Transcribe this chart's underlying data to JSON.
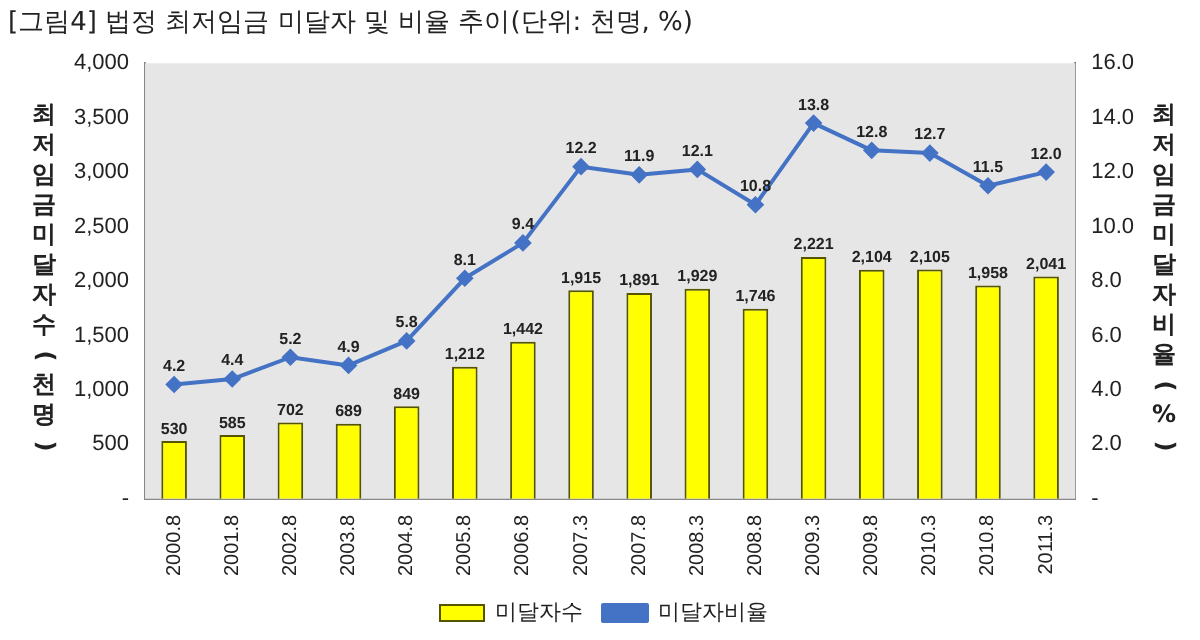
{
  "chart_data": {
    "type": "bar",
    "title": "[그림4] 법정 최저임금 미달자 및 비율 추이(단위: 천명, %)",
    "ylabel": "최저임금미달자수(천명)",
    "y2label": "최저임금미달자비율(%)",
    "categories": [
      "2000.8",
      "2001.8",
      "2002.8",
      "2003.8",
      "2004.8",
      "2005.8",
      "2006.8",
      "2007.3",
      "2007.8",
      "2008.3",
      "2008.8",
      "2009.3",
      "2009.8",
      "2010.3",
      "2010.8",
      "2011.3"
    ],
    "series": [
      {
        "name": "미달자수",
        "color": "#ffff00",
        "values": [
          530,
          585,
          702,
          689,
          849,
          1212,
          1442,
          1915,
          1891,
          1929,
          1746,
          2221,
          2104,
          2105,
          1958,
          2041
        ],
        "value_labels": [
          "530",
          "585",
          "702",
          "689",
          "849",
          "1,212",
          "1,442",
          "1,915",
          "1,891",
          "1,929",
          "1,746",
          "2,221",
          "2,104",
          "2,105",
          "1,958",
          "2,041"
        ]
      },
      {
        "name": "미달자비율",
        "type": "line",
        "axis": "y2",
        "color": "#4472c4",
        "marker": "diamond",
        "values": [
          4.2,
          4.4,
          5.2,
          4.9,
          5.8,
          8.1,
          9.4,
          12.2,
          11.9,
          12.1,
          10.8,
          13.8,
          12.8,
          12.7,
          11.5,
          12.0
        ],
        "value_labels": [
          "4.2",
          "4.4",
          "5.2",
          "4.9",
          "5.8",
          "8.1",
          "9.4",
          "12.2",
          "11.9",
          "12.1",
          "10.8",
          "13.8",
          "12.8",
          "12.7",
          "11.5",
          "12.0"
        ]
      }
    ],
    "ylim": [
      0,
      4000
    ],
    "yticks": [
      {
        "value": 0,
        "label": "-"
      },
      {
        "value": 500,
        "label": "500"
      },
      {
        "value": 1000,
        "label": "1,000"
      },
      {
        "value": 1500,
        "label": "1,500"
      },
      {
        "value": 2000,
        "label": "2,000"
      },
      {
        "value": 2500,
        "label": "2,500"
      },
      {
        "value": 3000,
        "label": "3,000"
      },
      {
        "value": 3500,
        "label": "3,500"
      },
      {
        "value": 4000,
        "label": "4,000"
      }
    ],
    "y2lim": [
      0,
      16
    ],
    "y2ticks": [
      {
        "value": 0,
        "label": "-"
      },
      {
        "value": 2,
        "label": "2.0"
      },
      {
        "value": 4,
        "label": "4.0"
      },
      {
        "value": 6,
        "label": "6.0"
      },
      {
        "value": 8,
        "label": "8.0"
      },
      {
        "value": 10,
        "label": "10.0"
      },
      {
        "value": 12,
        "label": "12.0"
      },
      {
        "value": 14,
        "label": "14.0"
      },
      {
        "value": 16,
        "label": "16.0"
      }
    ],
    "grid": false,
    "legend": "bottom"
  }
}
